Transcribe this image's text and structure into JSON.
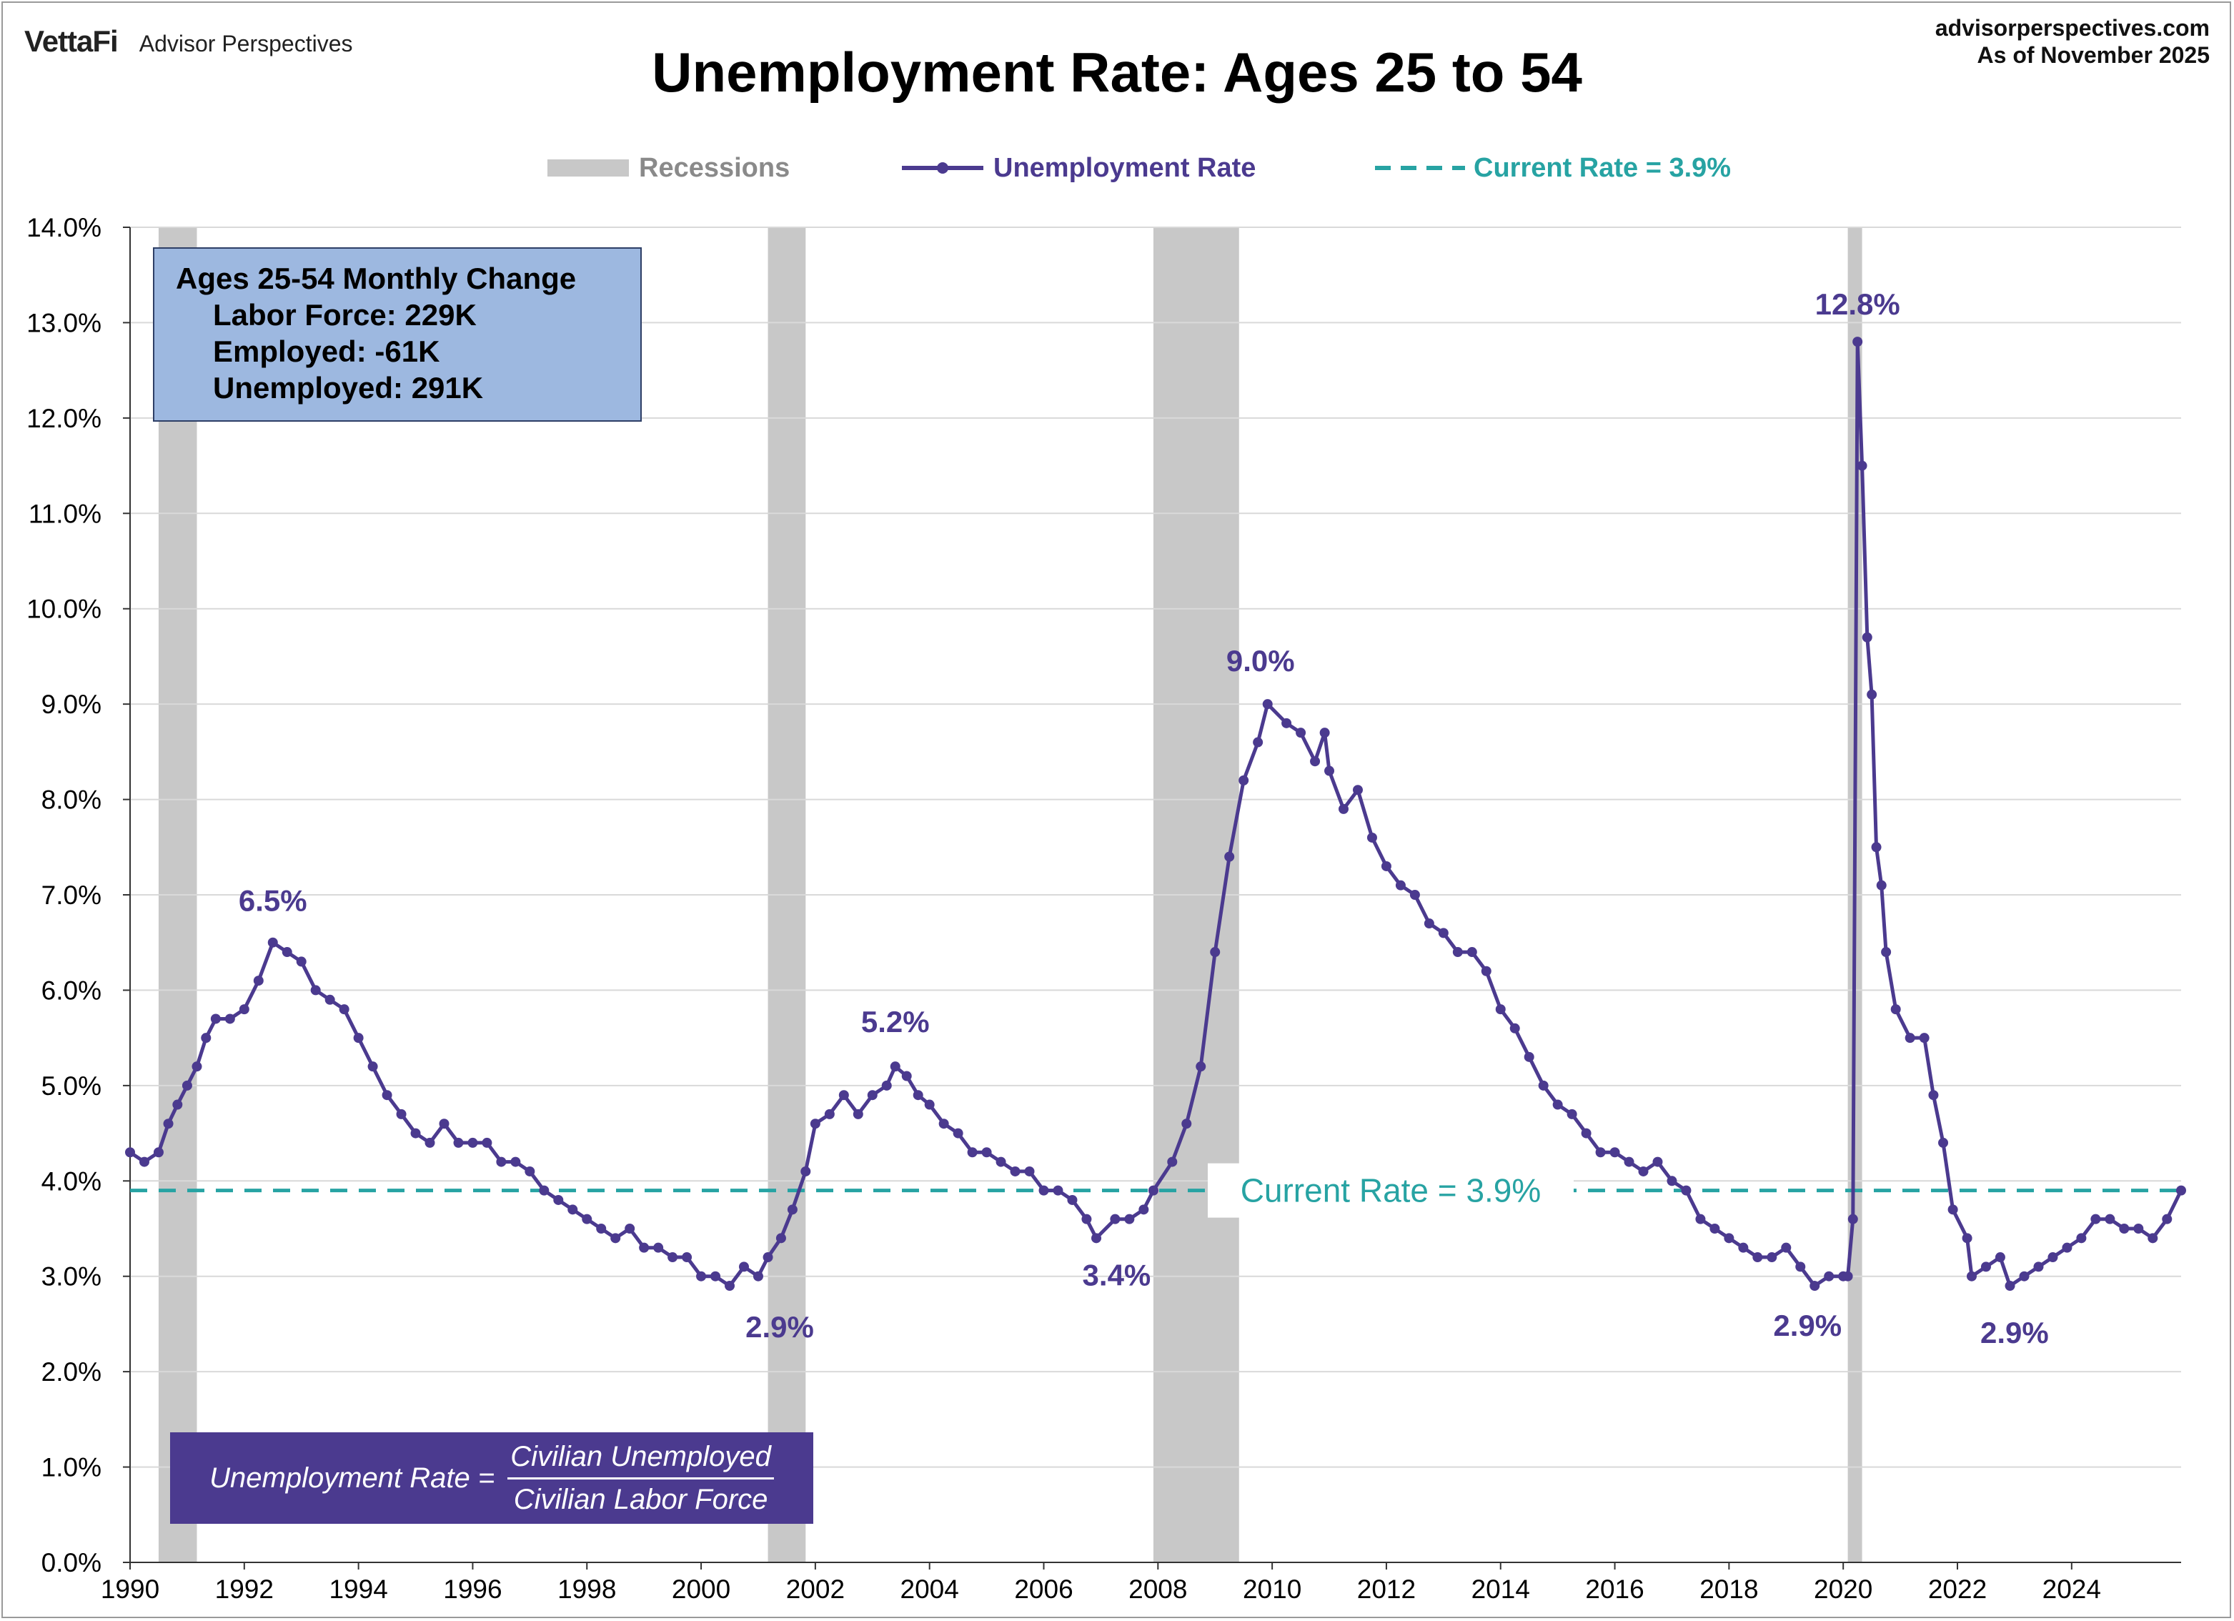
{
  "header": {
    "brand": "VettaFi",
    "brand_sub": "Advisor Perspectives",
    "site": "advisorperspectives.com",
    "as_of": "As of November 2025",
    "title": "Unemployment Rate: Ages 25 to 54"
  },
  "legend": {
    "recessions": "Recessions",
    "series": "Unemployment Rate",
    "current": "Current Rate = 3.9%"
  },
  "colors": {
    "series": "#4b3a8f",
    "current_line": "#27a3a3",
    "recession": "#c8c8c8",
    "grid": "#d9d9d9",
    "callout_bg": "#9db8e0",
    "formula_bg": "#4b3a8f"
  },
  "callout": {
    "heading": "Ages 25-54 Monthly Change",
    "labor_force": "Labor Force: 229K",
    "employed": "Employed: -61K",
    "unemployed": "Unemployed: 291K"
  },
  "formula": {
    "lhs": "Unemployment Rate =",
    "numerator": "Civilian Unemployed",
    "denominator": "Civilian Labor Force"
  },
  "chart_data": {
    "type": "line",
    "title": "Unemployment Rate: Ages 25 to 54",
    "xlabel": "",
    "ylabel": "",
    "xlim": [
      1990.0,
      2025.917
    ],
    "ylim": [
      0,
      14
    ],
    "y_ticks": [
      "0.0%",
      "1.0%",
      "2.0%",
      "3.0%",
      "4.0%",
      "5.0%",
      "6.0%",
      "7.0%",
      "8.0%",
      "9.0%",
      "10.0%",
      "11.0%",
      "12.0%",
      "13.0%",
      "14.0%"
    ],
    "x_ticks": [
      "1990",
      "1992",
      "1994",
      "1996",
      "1998",
      "2000",
      "2002",
      "2004",
      "2006",
      "2008",
      "2010",
      "2012",
      "2014",
      "2016",
      "2018",
      "2020",
      "2022",
      "2024"
    ],
    "grid": true,
    "legend_position": "top",
    "recessions": [
      [
        1990.5,
        1991.17
      ],
      [
        2001.17,
        2001.83
      ],
      [
        2007.92,
        2009.42
      ],
      [
        2020.08,
        2020.33
      ]
    ],
    "current_rate": 3.9,
    "current_rate_label": "Current Rate = 3.9%",
    "annotations": [
      {
        "text": "6.5%",
        "x": 1992.5,
        "y": 6.5
      },
      {
        "text": "2.9%",
        "x": 2000.5,
        "y": 2.9
      },
      {
        "text": "5.2%",
        "x": 2003.4,
        "y": 5.2
      },
      {
        "text": "3.4%",
        "x": 2006.9,
        "y": 3.4
      },
      {
        "text": "9.0%",
        "x": 2009.92,
        "y": 9.0
      },
      {
        "text": "12.8%",
        "x": 2020.25,
        "y": 12.8
      },
      {
        "text": "2.9%",
        "x": 2019.5,
        "y": 2.9
      },
      {
        "text": "2.9%",
        "x": 2023.0,
        "y": 2.9
      }
    ],
    "series": [
      {
        "name": "Unemployment Rate",
        "points": [
          [
            1990.0,
            4.3
          ],
          [
            1990.25,
            4.2
          ],
          [
            1990.5,
            4.3
          ],
          [
            1990.67,
            4.6
          ],
          [
            1990.83,
            4.8
          ],
          [
            1991.0,
            5.0
          ],
          [
            1991.17,
            5.2
          ],
          [
            1991.33,
            5.5
          ],
          [
            1991.5,
            5.7
          ],
          [
            1991.75,
            5.7
          ],
          [
            1992.0,
            5.8
          ],
          [
            1992.25,
            6.1
          ],
          [
            1992.5,
            6.5
          ],
          [
            1992.75,
            6.4
          ],
          [
            1993.0,
            6.3
          ],
          [
            1993.25,
            6.0
          ],
          [
            1993.5,
            5.9
          ],
          [
            1993.75,
            5.8
          ],
          [
            1994.0,
            5.5
          ],
          [
            1994.25,
            5.2
          ],
          [
            1994.5,
            4.9
          ],
          [
            1994.75,
            4.7
          ],
          [
            1995.0,
            4.5
          ],
          [
            1995.25,
            4.4
          ],
          [
            1995.5,
            4.6
          ],
          [
            1995.75,
            4.4
          ],
          [
            1996.0,
            4.4
          ],
          [
            1996.25,
            4.4
          ],
          [
            1996.5,
            4.2
          ],
          [
            1996.75,
            4.2
          ],
          [
            1997.0,
            4.1
          ],
          [
            1997.25,
            3.9
          ],
          [
            1997.5,
            3.8
          ],
          [
            1997.75,
            3.7
          ],
          [
            1998.0,
            3.6
          ],
          [
            1998.25,
            3.5
          ],
          [
            1998.5,
            3.4
          ],
          [
            1998.75,
            3.5
          ],
          [
            1999.0,
            3.3
          ],
          [
            1999.25,
            3.3
          ],
          [
            1999.5,
            3.2
          ],
          [
            1999.75,
            3.2
          ],
          [
            2000.0,
            3.0
          ],
          [
            2000.25,
            3.0
          ],
          [
            2000.5,
            2.9
          ],
          [
            2000.75,
            3.1
          ],
          [
            2001.0,
            3.0
          ],
          [
            2001.17,
            3.2
          ],
          [
            2001.4,
            3.4
          ],
          [
            2001.6,
            3.7
          ],
          [
            2001.83,
            4.1
          ],
          [
            2002.0,
            4.6
          ],
          [
            2002.25,
            4.7
          ],
          [
            2002.5,
            4.9
          ],
          [
            2002.75,
            4.7
          ],
          [
            2003.0,
            4.9
          ],
          [
            2003.25,
            5.0
          ],
          [
            2003.4,
            5.2
          ],
          [
            2003.6,
            5.1
          ],
          [
            2003.8,
            4.9
          ],
          [
            2004.0,
            4.8
          ],
          [
            2004.25,
            4.6
          ],
          [
            2004.5,
            4.5
          ],
          [
            2004.75,
            4.3
          ],
          [
            2005.0,
            4.3
          ],
          [
            2005.25,
            4.2
          ],
          [
            2005.5,
            4.1
          ],
          [
            2005.75,
            4.1
          ],
          [
            2006.0,
            3.9
          ],
          [
            2006.25,
            3.9
          ],
          [
            2006.5,
            3.8
          ],
          [
            2006.75,
            3.6
          ],
          [
            2006.92,
            3.4
          ],
          [
            2007.25,
            3.6
          ],
          [
            2007.5,
            3.6
          ],
          [
            2007.75,
            3.7
          ],
          [
            2007.92,
            3.9
          ],
          [
            2008.25,
            4.2
          ],
          [
            2008.5,
            4.6
          ],
          [
            2008.75,
            5.2
          ],
          [
            2009.0,
            6.4
          ],
          [
            2009.25,
            7.4
          ],
          [
            2009.5,
            8.2
          ],
          [
            2009.75,
            8.6
          ],
          [
            2009.92,
            9.0
          ],
          [
            2010.25,
            8.8
          ],
          [
            2010.5,
            8.7
          ],
          [
            2010.75,
            8.4
          ],
          [
            2010.92,
            8.7
          ],
          [
            2011.0,
            8.3
          ],
          [
            2011.25,
            7.9
          ],
          [
            2011.5,
            8.1
          ],
          [
            2011.75,
            7.6
          ],
          [
            2012.0,
            7.3
          ],
          [
            2012.25,
            7.1
          ],
          [
            2012.5,
            7.0
          ],
          [
            2012.75,
            6.7
          ],
          [
            2013.0,
            6.6
          ],
          [
            2013.25,
            6.4
          ],
          [
            2013.5,
            6.4
          ],
          [
            2013.75,
            6.2
          ],
          [
            2014.0,
            5.8
          ],
          [
            2014.25,
            5.6
          ],
          [
            2014.5,
            5.3
          ],
          [
            2014.75,
            5.0
          ],
          [
            2015.0,
            4.8
          ],
          [
            2015.25,
            4.7
          ],
          [
            2015.5,
            4.5
          ],
          [
            2015.75,
            4.3
          ],
          [
            2016.0,
            4.3
          ],
          [
            2016.25,
            4.2
          ],
          [
            2016.5,
            4.1
          ],
          [
            2016.75,
            4.2
          ],
          [
            2017.0,
            4.0
          ],
          [
            2017.25,
            3.9
          ],
          [
            2017.5,
            3.6
          ],
          [
            2017.75,
            3.5
          ],
          [
            2018.0,
            3.4
          ],
          [
            2018.25,
            3.3
          ],
          [
            2018.5,
            3.2
          ],
          [
            2018.75,
            3.2
          ],
          [
            2019.0,
            3.3
          ],
          [
            2019.25,
            3.1
          ],
          [
            2019.5,
            2.9
          ],
          [
            2019.75,
            3.0
          ],
          [
            2020.0,
            3.0
          ],
          [
            2020.08,
            3.0
          ],
          [
            2020.17,
            3.6
          ],
          [
            2020.25,
            12.8
          ],
          [
            2020.33,
            11.5
          ],
          [
            2020.42,
            9.7
          ],
          [
            2020.5,
            9.1
          ],
          [
            2020.58,
            7.5
          ],
          [
            2020.67,
            7.1
          ],
          [
            2020.75,
            6.4
          ],
          [
            2020.92,
            5.8
          ],
          [
            2021.17,
            5.5
          ],
          [
            2021.42,
            5.5
          ],
          [
            2021.58,
            4.9
          ],
          [
            2021.75,
            4.4
          ],
          [
            2021.92,
            3.7
          ],
          [
            2022.17,
            3.4
          ],
          [
            2022.25,
            3.0
          ],
          [
            2022.5,
            3.1
          ],
          [
            2022.75,
            3.2
          ],
          [
            2022.92,
            2.9
          ],
          [
            2023.17,
            3.0
          ],
          [
            2023.42,
            3.1
          ],
          [
            2023.67,
            3.2
          ],
          [
            2023.92,
            3.3
          ],
          [
            2024.17,
            3.4
          ],
          [
            2024.42,
            3.6
          ],
          [
            2024.67,
            3.6
          ],
          [
            2024.92,
            3.5
          ],
          [
            2025.17,
            3.5
          ],
          [
            2025.42,
            3.4
          ],
          [
            2025.67,
            3.6
          ],
          [
            2025.917,
            3.9
          ]
        ]
      }
    ]
  }
}
